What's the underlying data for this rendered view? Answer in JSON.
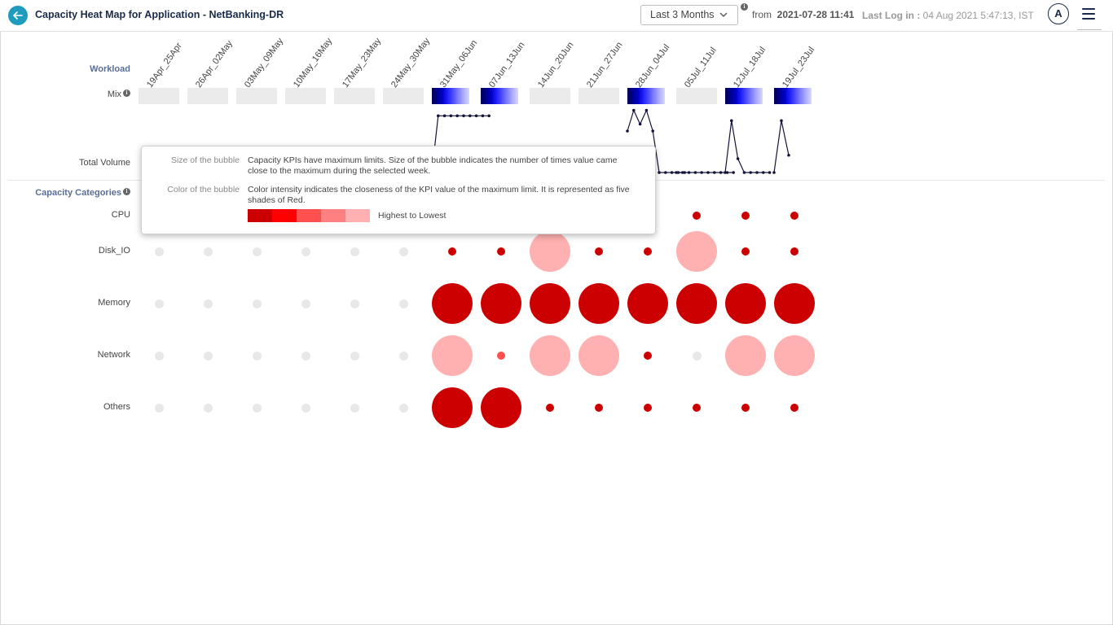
{
  "header": {
    "title": "Capacity Heat Map for Application - NetBanking-DR",
    "time_range": "Last 3 Months",
    "from_label": "from",
    "from_value": "2021-07-28 11:41",
    "last_login_label": "Last Log in :",
    "last_login_value": "04 Aug 2021 5:47:13, IST",
    "avatar_initial": "A"
  },
  "labels": {
    "workload": "Workload",
    "mix": "Mix",
    "total_volume": "Total Volume",
    "capacity_categories": "Capacity Categories",
    "info_glyph": "i"
  },
  "weeks": [
    "19Apr_25Apr",
    "26Apr_02May",
    "03May_09May",
    "10May_16May",
    "17May_23May",
    "24May_30May",
    "31May_06Jun",
    "07Jun_13Jun",
    "14Jun_20Jun",
    "21Jun_27Jun",
    "28Jun_04Jul",
    "05Jul_11Jul",
    "12Jul_18Jul",
    "19Jul_23Jul"
  ],
  "mix_has_data": [
    false,
    false,
    false,
    false,
    false,
    false,
    true,
    true,
    false,
    false,
    true,
    false,
    true,
    true
  ],
  "mix_colors": [
    "#000050",
    "#00008c",
    "#0000c8",
    "#2020ff",
    "#5050ff",
    "#8080ff",
    "#b0b0ff",
    "#d8d8ff"
  ],
  "mix_empty_color": "#ebebeb",
  "total_volume": [
    [
      6,
      [
        0,
        0.82,
        0.82,
        0.82,
        0.82,
        0.82,
        0.82,
        0.82,
        0.82,
        0.82
      ]
    ],
    [
      10,
      [
        0.6,
        0.9,
        0.7,
        0.9,
        0.6,
        0,
        0,
        0,
        0,
        0
      ]
    ],
    [
      11,
      [
        0,
        0,
        0,
        0,
        0,
        0,
        0,
        0,
        0,
        0
      ]
    ],
    [
      12,
      [
        0,
        0.75,
        0.2,
        0,
        0,
        0,
        0,
        0
      ]
    ],
    [
      13,
      [
        0,
        0.75,
        0.25
      ]
    ]
  ],
  "categories": [
    "CPU",
    "Disk_IO",
    "Memory",
    "Network",
    "Others"
  ],
  "bubble_scale": [
    "#cc0000",
    "#ff0000",
    "#ff5050",
    "#ff8080",
    "#ffb0b0"
  ],
  "bubble_empty_color": "#e8e8e8",
  "bubbles": {
    "CPU": [
      [
        0,
        0
      ],
      [
        0,
        0
      ],
      [
        0,
        0
      ],
      [
        0,
        0
      ],
      [
        0,
        0
      ],
      [
        0,
        0
      ],
      [
        0,
        0
      ],
      [
        0,
        0
      ],
      [
        0,
        0
      ],
      [
        0,
        0
      ],
      [
        0,
        0
      ],
      [
        1,
        1
      ],
      [
        1,
        1
      ],
      [
        1,
        1
      ]
    ],
    "Disk_IO": [
      [
        0,
        0
      ],
      [
        0,
        0
      ],
      [
        0,
        0
      ],
      [
        0,
        0
      ],
      [
        0,
        0
      ],
      [
        0,
        0
      ],
      [
        1,
        1
      ],
      [
        1,
        1
      ],
      [
        5,
        5
      ],
      [
        1,
        1
      ],
      [
        1,
        1
      ],
      [
        5,
        5
      ],
      [
        1,
        1
      ],
      [
        1,
        1
      ]
    ],
    "Memory": [
      [
        0,
        0
      ],
      [
        0,
        0
      ],
      [
        0,
        0
      ],
      [
        0,
        0
      ],
      [
        0,
        0
      ],
      [
        0,
        0
      ],
      [
        5,
        1
      ],
      [
        5,
        1
      ],
      [
        5,
        1
      ],
      [
        5,
        1
      ],
      [
        5,
        1
      ],
      [
        5,
        1
      ],
      [
        5,
        1
      ],
      [
        5,
        1
      ]
    ],
    "Network": [
      [
        0,
        0
      ],
      [
        0,
        0
      ],
      [
        0,
        0
      ],
      [
        0,
        0
      ],
      [
        0,
        0
      ],
      [
        0,
        0
      ],
      [
        5,
        5
      ],
      [
        1,
        3
      ],
      [
        5,
        5
      ],
      [
        5,
        5
      ],
      [
        1,
        1
      ],
      [
        0,
        0
      ],
      [
        5,
        5
      ],
      [
        5,
        5
      ]
    ],
    "Others": [
      [
        0,
        0
      ],
      [
        0,
        0
      ],
      [
        0,
        0
      ],
      [
        0,
        0
      ],
      [
        0,
        0
      ],
      [
        0,
        0
      ],
      [
        5,
        1
      ],
      [
        5,
        1
      ],
      [
        1,
        1
      ],
      [
        1,
        1
      ],
      [
        1,
        1
      ],
      [
        1,
        1
      ],
      [
        1,
        1
      ],
      [
        1,
        1
      ]
    ]
  },
  "tooltip": {
    "size_key": "Size of the bubble",
    "size_text": "Capacity KPIs have maximum limits. Size of the bubble indicates the number of times value came close to the maximum during the selected week.",
    "color_key": "Color of the bubble",
    "color_text": "Color intensity indicates the closeness of the KPI value of the maximum limit. It is represented as five shades of Red.",
    "legend_text": "Highest to Lowest"
  },
  "colors": {
    "accent": "#1f9bbd",
    "navy": "#1a2b49",
    "volume_line": "#14143c"
  }
}
